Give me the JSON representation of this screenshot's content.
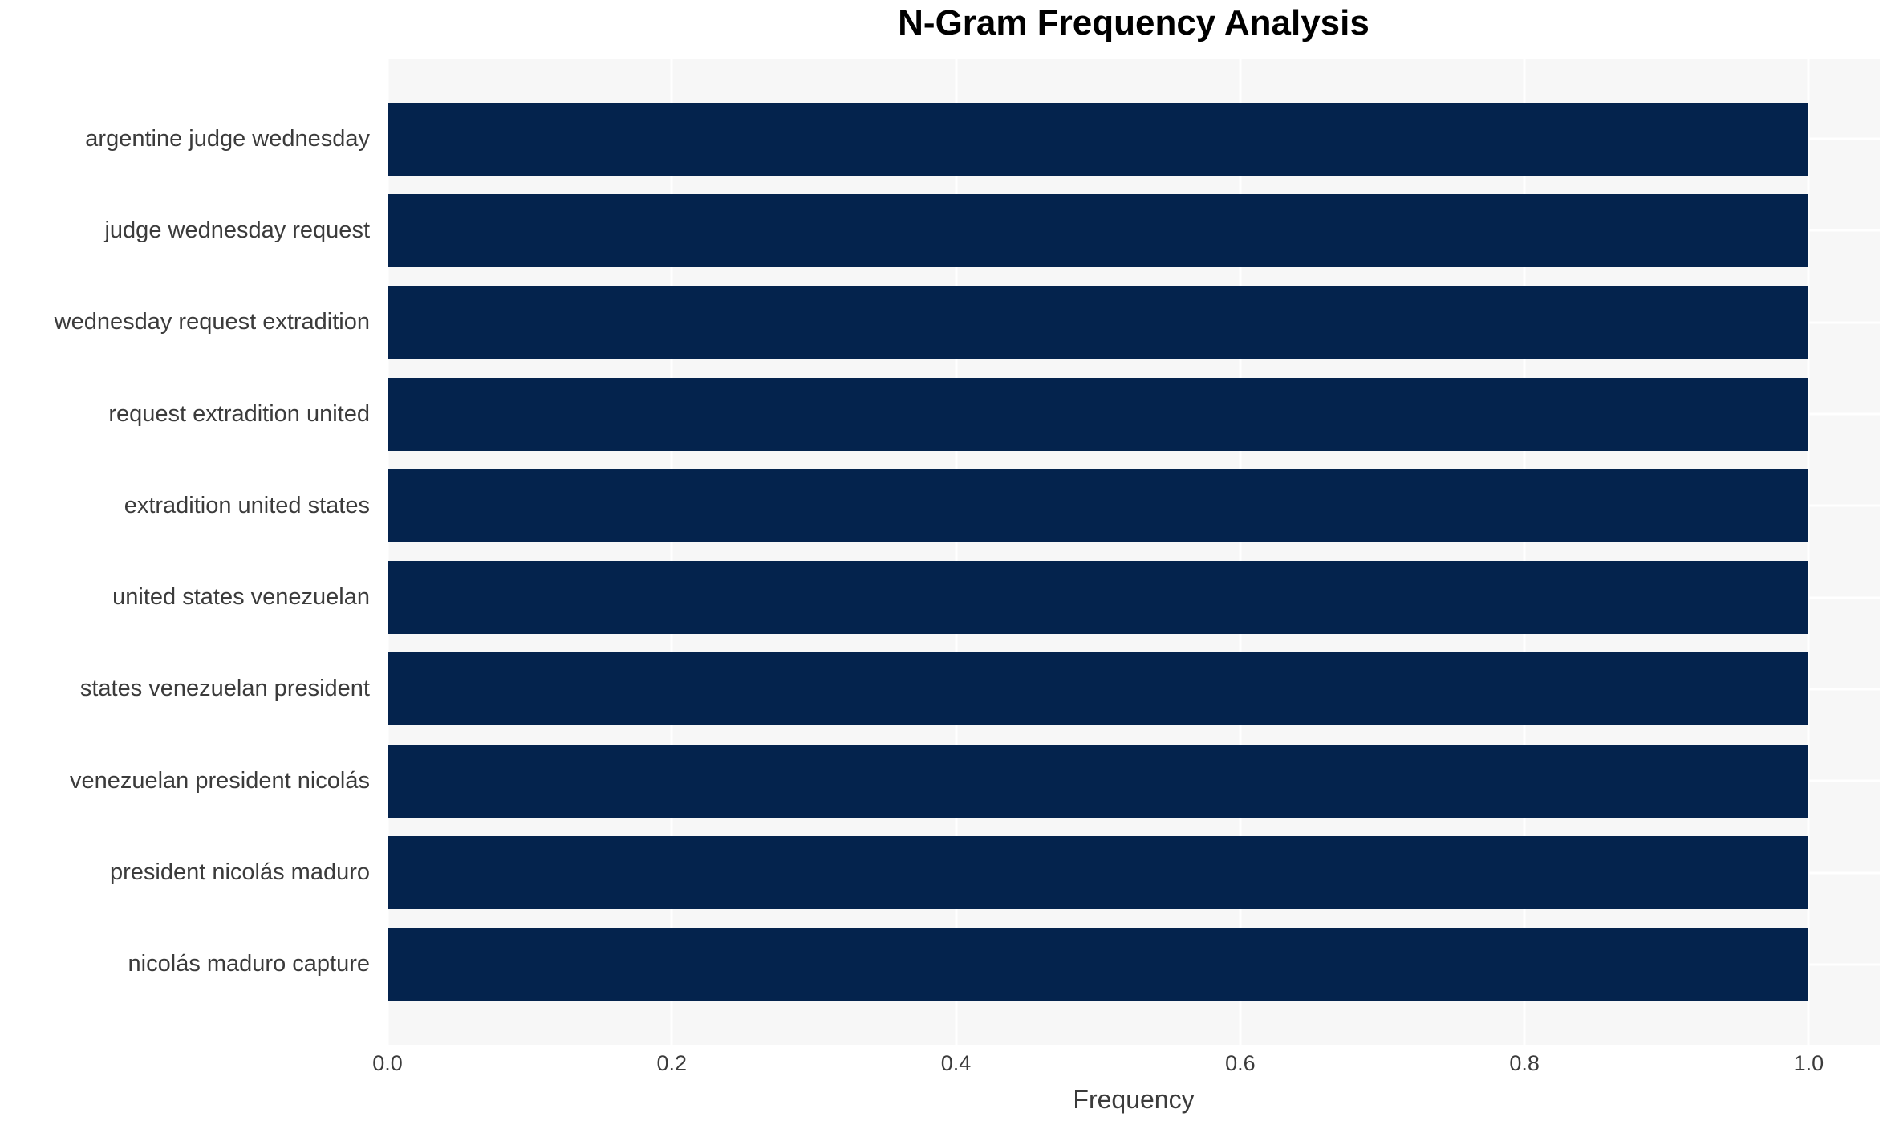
{
  "title": "N-Gram Frequency Analysis",
  "chart_data": {
    "type": "bar",
    "orientation": "horizontal",
    "title": "N-Gram Frequency Analysis",
    "categories": [
      "argentine judge wednesday",
      "judge wednesday request",
      "wednesday request extradition",
      "request extradition united",
      "extradition united states",
      "united states venezuelan",
      "states venezuelan president",
      "venezuelan president nicolás",
      "president nicolás maduro",
      "nicolás maduro capture"
    ],
    "values": [
      1.0,
      1.0,
      1.0,
      1.0,
      1.0,
      1.0,
      1.0,
      1.0,
      1.0,
      1.0
    ],
    "xlabel": "Frequency",
    "ylabel": "",
    "xtick_labels": [
      "0.0",
      "0.2",
      "0.4",
      "0.6",
      "0.8",
      "1.0"
    ],
    "xtick_values": [
      0.0,
      0.2,
      0.4,
      0.6,
      0.8,
      1.0
    ],
    "xlim": [
      0,
      1.05
    ],
    "grid": true,
    "legend_position": "none",
    "colors": {
      "bar": "#04234d",
      "plot_background": "#f7f7f7",
      "gridline": "#ffffff",
      "figure_background": "#ffffff",
      "title_text": "#000000",
      "label_text": "#3b3b3b"
    }
  }
}
